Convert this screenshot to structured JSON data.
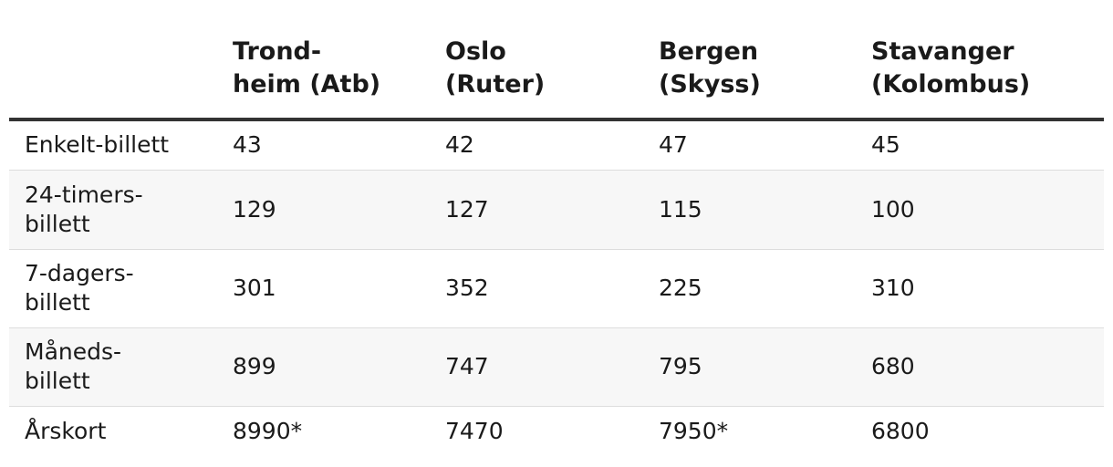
{
  "table": {
    "columns": [
      "Trond-\nheim (Atb)",
      "Oslo\n(Ruter)",
      "Bergen\n(Skyss)",
      "Stavanger\n(Kolombus)"
    ],
    "rows": [
      [
        "Enkelt-billett",
        "43",
        "42",
        "47",
        "45"
      ],
      [
        "24-timers-\nbillett",
        "129",
        "127",
        "115",
        "100"
      ],
      [
        "7-dagers-\nbillett",
        "301",
        "352",
        "225",
        "310"
      ],
      [
        "Måneds-\nbillett",
        "899",
        "747",
        "795",
        "680"
      ],
      [
        "Årskort",
        "8990*",
        "7470",
        "7950*",
        "6800"
      ]
    ]
  }
}
